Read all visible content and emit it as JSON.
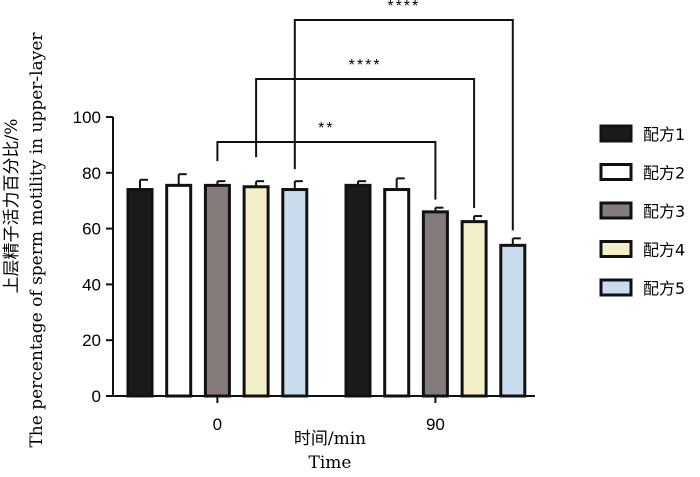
{
  "chart_data": {
    "type": "bar",
    "categories": [
      "0",
      "90"
    ],
    "xlabel": "时间/min",
    "xlabel_en": "Time",
    "ylabel": "上层精子活力百分比/%",
    "ylabel_en": "The percentage of sperm motility in upper-layer",
    "ylim": [
      0,
      100
    ],
    "yticks": [
      0,
      20,
      40,
      60,
      80,
      100
    ],
    "legend_position": "right",
    "series": [
      {
        "name": "配方1",
        "color": "#1a1a1a",
        "values": [
          74,
          75.5
        ],
        "errors": [
          3.5,
          1.5
        ]
      },
      {
        "name": "配方2",
        "color": "#ffffff",
        "values": [
          75.5,
          74
        ],
        "errors": [
          4,
          4
        ]
      },
      {
        "name": "配方3",
        "color": "#857b7b",
        "values": [
          75.5,
          66
        ],
        "errors": [
          1.5,
          1.5
        ]
      },
      {
        "name": "配方4",
        "color": "#f3efc9",
        "values": [
          75,
          62.5
        ],
        "errors": [
          2,
          2
        ]
      },
      {
        "name": "配方5",
        "color": "#c9dcee",
        "values": [
          74,
          54
        ],
        "errors": [
          3,
          2.5
        ]
      }
    ],
    "significance": [
      {
        "from": {
          "category": 0,
          "series": 2
        },
        "to": {
          "category": 1,
          "series": 2
        },
        "label": "**"
      },
      {
        "from": {
          "category": 0,
          "series": 3
        },
        "to": {
          "category": 1,
          "series": 3
        },
        "label": "****"
      },
      {
        "from": {
          "category": 0,
          "series": 4
        },
        "to": {
          "category": 1,
          "series": 4
        },
        "label": "****"
      }
    ]
  }
}
